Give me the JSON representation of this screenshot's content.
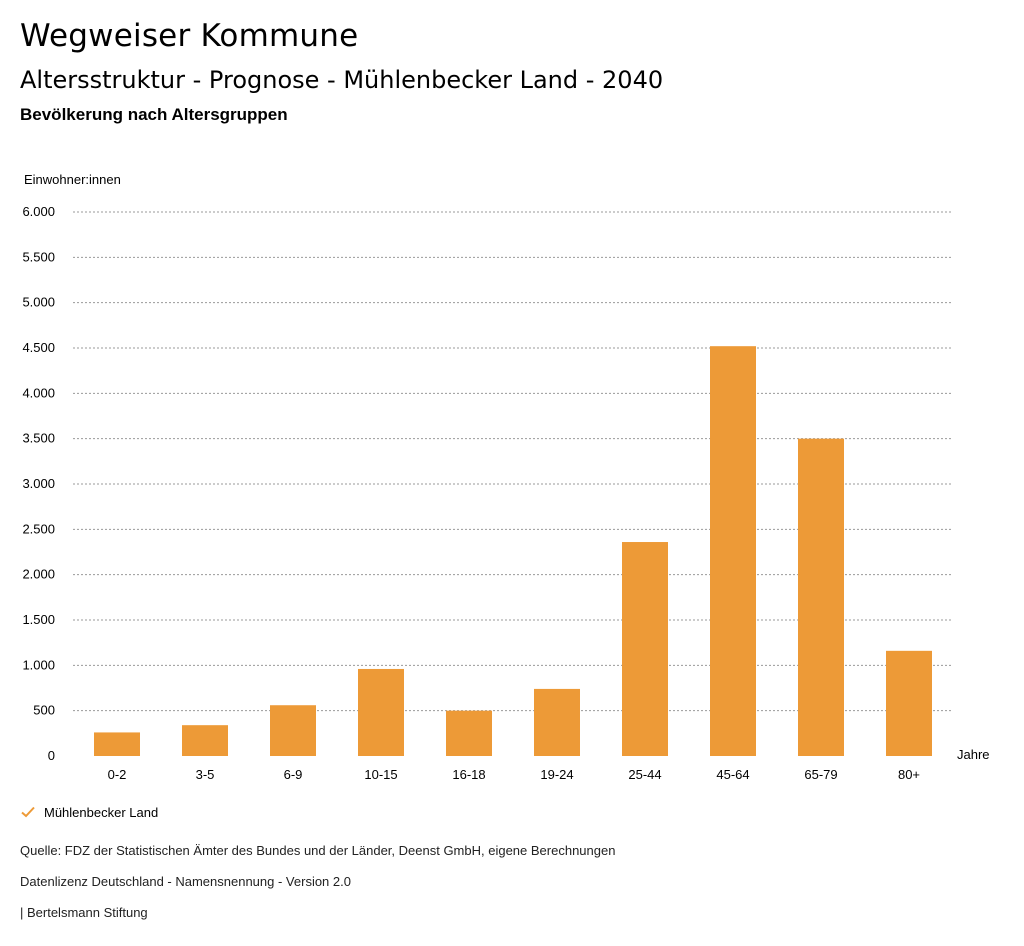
{
  "header": {
    "title": "Wegweiser Kommune",
    "subtitle": "Altersstruktur - Prognose - Mühlenbecker Land - 2040",
    "chart_heading": "Bevölkerung nach Altersgruppen"
  },
  "chart_data": {
    "type": "bar",
    "ylabel": "Einwohner:innen",
    "xlabel": "Jahre",
    "categories": [
      "0-2",
      "3-5",
      "6-9",
      "10-15",
      "16-18",
      "19-24",
      "25-44",
      "45-64",
      "65-79",
      "80+"
    ],
    "series": [
      {
        "name": "Mühlenbecker Land",
        "values": [
          260,
          340,
          560,
          960,
          500,
          740,
          2360,
          4520,
          3500,
          1160
        ]
      }
    ],
    "ylim": [
      0,
      6000
    ],
    "yticks": [
      0,
      500,
      1000,
      1500,
      2000,
      2500,
      3000,
      3500,
      4000,
      4500,
      5000,
      5500,
      6000
    ],
    "ytick_labels": [
      "0",
      "500",
      "1.000",
      "1.500",
      "2.000",
      "2.500",
      "3.000",
      "3.500",
      "4.000",
      "4.500",
      "5.000",
      "5.500",
      "6.000"
    ],
    "grid": true,
    "bar_color": "#ED9A37",
    "legend_position": "bottom-left"
  },
  "legend": {
    "label": "Mühlenbecker Land"
  },
  "footer": {
    "source": "Quelle: FDZ der Statistischen Ämter des Bundes und der Länder, Deenst GmbH, eigene Berechnungen",
    "license": "Datenlizenz Deutschland - Namensnennung - Version 2.0",
    "credit": "| Bertelsmann Stiftung"
  }
}
